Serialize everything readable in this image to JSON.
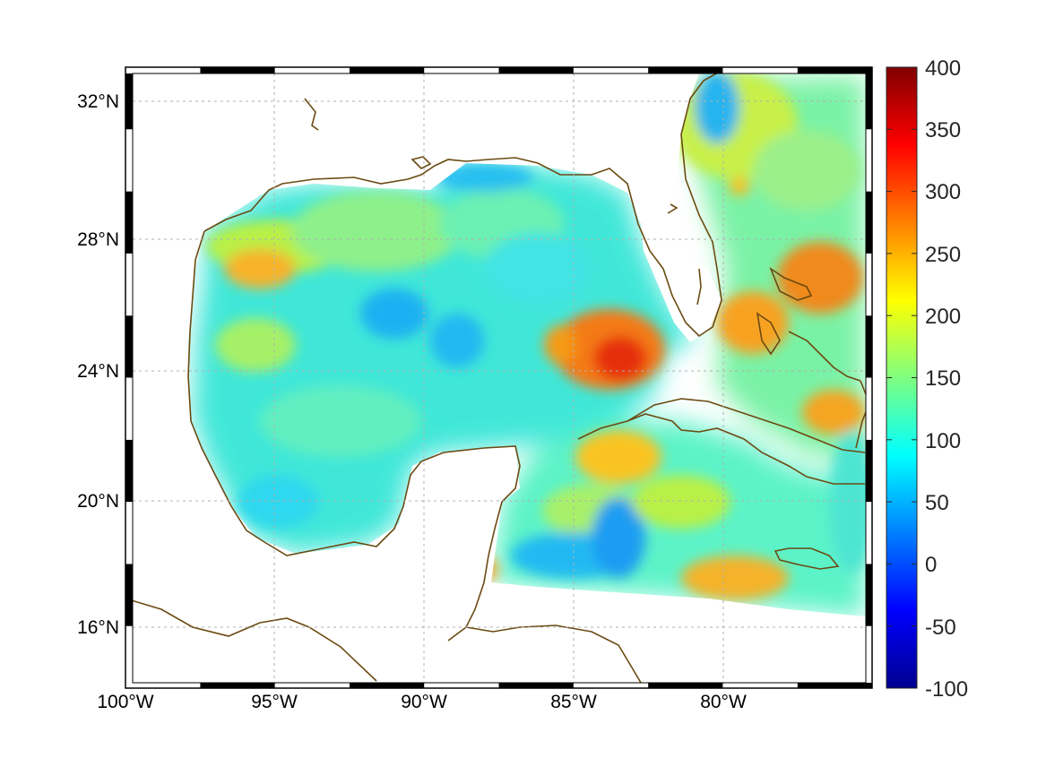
{
  "map": {
    "projection": "Mercator",
    "lon_range": [
      -100,
      -75
    ],
    "lat_range": [
      14.3,
      33
    ],
    "field_range": [
      -100,
      400
    ],
    "grid": true,
    "frame_style": "alternating black-white border",
    "coastline_color": "#6b4a12",
    "lon_ticks": [
      {
        "value": -100,
        "label": "100°W"
      },
      {
        "value": -95,
        "label": "95°W"
      },
      {
        "value": -90,
        "label": "90°W"
      },
      {
        "value": -85,
        "label": "85°W"
      },
      {
        "value": -80,
        "label": "80°W"
      }
    ],
    "lat_ticks": [
      {
        "value": 32,
        "label": "32°N"
      },
      {
        "value": 28,
        "label": "28°N"
      },
      {
        "value": 24,
        "label": "24°N"
      },
      {
        "value": 20,
        "label": "20°N"
      },
      {
        "value": 16,
        "label": "16°N"
      }
    ],
    "regions": [
      {
        "name": "gulf-west-shelf-high",
        "center": [
          -95.5,
          27.0
        ],
        "value": 235
      },
      {
        "name": "gulf-central-low",
        "center": [
          -92.5,
          25.5
        ],
        "value": 75
      },
      {
        "name": "loop-current-high",
        "center": [
          -84.2,
          24.8
        ],
        "value": 320
      },
      {
        "name": "bahamas-high",
        "center": [
          -77.5,
          26.5
        ],
        "value": 270
      },
      {
        "name": "cayman-high",
        "center": [
          -79.5,
          17.5
        ],
        "value": 250
      },
      {
        "name": "yucatan-channel-low",
        "center": [
          -84.5,
          18.5
        ],
        "value": 60
      },
      {
        "name": "atlantic-coast-low",
        "center": [
          -79.5,
          32.0
        ],
        "value": 60
      }
    ]
  },
  "colorbar": {
    "colormap": "jet",
    "min": -100,
    "max": 400,
    "ticks": [
      "400",
      "350",
      "300",
      "250",
      "200",
      "150",
      "100",
      "50",
      "0",
      "-50",
      "-100"
    ]
  }
}
